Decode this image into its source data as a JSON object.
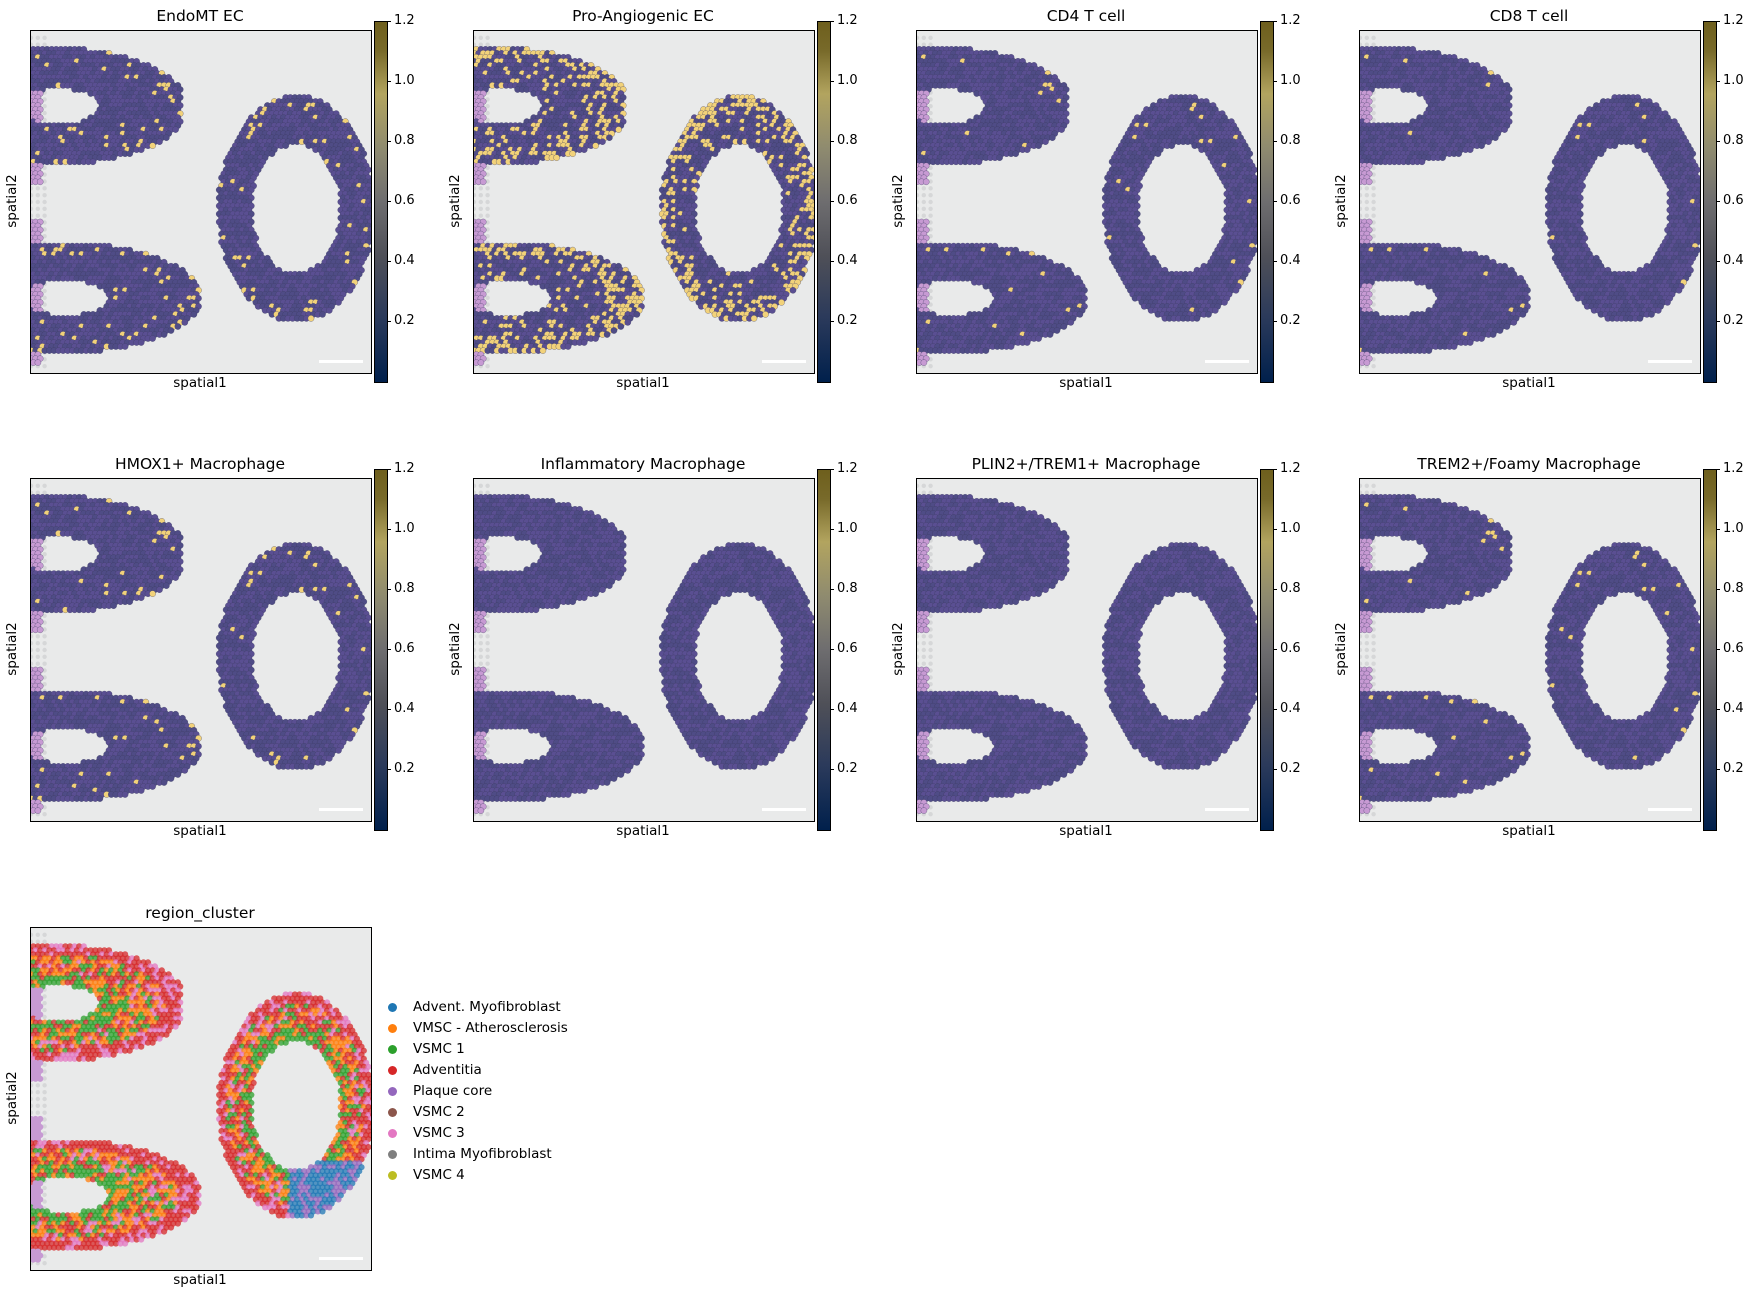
{
  "figure": {
    "panels": [
      {
        "title": "EndoMT EC",
        "xlabel": "spatial1",
        "ylabel": "spatial2"
      },
      {
        "title": "Pro-Angiogenic EC",
        "xlabel": "spatial1",
        "ylabel": "spatial2"
      },
      {
        "title": "CD4 T cell",
        "xlabel": "spatial1",
        "ylabel": "spatial2"
      },
      {
        "title": "CD8 T cell",
        "xlabel": "spatial1",
        "ylabel": "spatial2"
      },
      {
        "title": "HMOX1+ Macrophage",
        "xlabel": "spatial1",
        "ylabel": "spatial2"
      },
      {
        "title": "Inflammatory Macrophage",
        "xlabel": "spatial1",
        "ylabel": "spatial2"
      },
      {
        "title": "PLIN2+/TREM1+ Macrophage",
        "xlabel": "spatial1",
        "ylabel": "spatial2"
      },
      {
        "title": "TREM2+/Foamy Macrophage",
        "xlabel": "spatial1",
        "ylabel": "spatial2"
      },
      {
        "title": "region_cluster",
        "xlabel": "spatial1",
        "ylabel": "spatial2"
      }
    ]
  },
  "chart_data": [
    {
      "type": "scatter",
      "title": "EndoMT EC",
      "xlabel": "spatial1",
      "ylabel": "spatial2",
      "colorbar": {
        "ticks": [
          "0.2",
          "0.4",
          "0.6",
          "0.8",
          "1.0",
          "1.2"
        ],
        "range": [
          0.0,
          1.2
        ],
        "colormap": "cividis"
      },
      "grid": false,
      "high_value_fraction": 0.04
    },
    {
      "type": "scatter",
      "title": "Pro-Angiogenic EC",
      "xlabel": "spatial1",
      "ylabel": "spatial2",
      "colorbar": {
        "ticks": [
          "0.2",
          "0.4",
          "0.6",
          "0.8",
          "1.0",
          "1.2"
        ],
        "range": [
          0.0,
          1.2
        ],
        "colormap": "cividis"
      },
      "grid": false,
      "high_value_fraction": 0.2
    },
    {
      "type": "scatter",
      "title": "CD4 T cell",
      "xlabel": "spatial1",
      "ylabel": "spatial2",
      "colorbar": {
        "ticks": [
          "0.2",
          "0.4",
          "0.6",
          "0.8",
          "1.0",
          "1.2"
        ],
        "range": [
          0.0,
          1.2
        ],
        "colormap": "cividis"
      },
      "grid": false,
      "high_value_fraction": 0.01
    },
    {
      "type": "scatter",
      "title": "CD8 T cell",
      "xlabel": "spatial1",
      "ylabel": "spatial2",
      "colorbar": {
        "ticks": [
          "0.2",
          "0.4",
          "0.6",
          "0.8",
          "1.0",
          "1.2"
        ],
        "range": [
          0.0,
          1.2
        ],
        "colormap": "cividis"
      },
      "grid": false,
      "high_value_fraction": 0.005
    },
    {
      "type": "scatter",
      "title": "HMOX1+ Macrophage",
      "xlabel": "spatial1",
      "ylabel": "spatial2",
      "colorbar": {
        "ticks": [
          "0.2",
          "0.4",
          "0.6",
          "0.8",
          "1.0",
          "1.2"
        ],
        "range": [
          0.0,
          1.2
        ],
        "colormap": "cividis"
      },
      "grid": false,
      "high_value_fraction": 0.02
    },
    {
      "type": "scatter",
      "title": "Inflammatory Macrophage",
      "xlabel": "spatial1",
      "ylabel": "spatial2",
      "colorbar": {
        "ticks": [
          "0.2",
          "0.4",
          "0.6",
          "0.8",
          "1.0",
          "1.2"
        ],
        "range": [
          0.0,
          1.2
        ],
        "colormap": "cividis"
      },
      "grid": false,
      "high_value_fraction": 0.0
    },
    {
      "type": "scatter",
      "title": "PLIN2+/TREM1+ Macrophage",
      "xlabel": "spatial1",
      "ylabel": "spatial2",
      "colorbar": {
        "ticks": [
          "0.2",
          "0.4",
          "0.6",
          "0.8",
          "1.0",
          "1.2"
        ],
        "range": [
          0.0,
          1.2
        ],
        "colormap": "cividis"
      },
      "grid": false,
      "high_value_fraction": 0.0
    },
    {
      "type": "scatter",
      "title": "TREM2+/Foamy Macrophage",
      "xlabel": "spatial1",
      "ylabel": "spatial2",
      "colorbar": {
        "ticks": [
          "0.2",
          "0.4",
          "0.6",
          "0.8",
          "1.0",
          "1.2"
        ],
        "range": [
          0.0,
          1.2
        ],
        "colormap": "cividis"
      },
      "grid": false,
      "high_value_fraction": 0.01
    },
    {
      "type": "scatter",
      "title": "region_cluster",
      "xlabel": "spatial1",
      "ylabel": "spatial2",
      "grid": false,
      "legend_placement": "right",
      "legend": [
        {
          "name": "Advent. Myofibroblast",
          "color": "#1f77b4"
        },
        {
          "name": "VMSC - Atherosclerosis",
          "color": "#ff7f0e"
        },
        {
          "name": "VSMC 1",
          "color": "#2ca02c"
        },
        {
          "name": "Adventitia",
          "color": "#d62728"
        },
        {
          "name": "Plaque core",
          "color": "#9467bd"
        },
        {
          "name": "VSMC 2",
          "color": "#8c564b"
        },
        {
          "name": "VSMC 3",
          "color": "#e377c2"
        },
        {
          "name": "Intima Myofibroblast",
          "color": "#7f7f7f"
        },
        {
          "name": "VSMC 4",
          "color": "#bcbd22"
        }
      ]
    }
  ]
}
